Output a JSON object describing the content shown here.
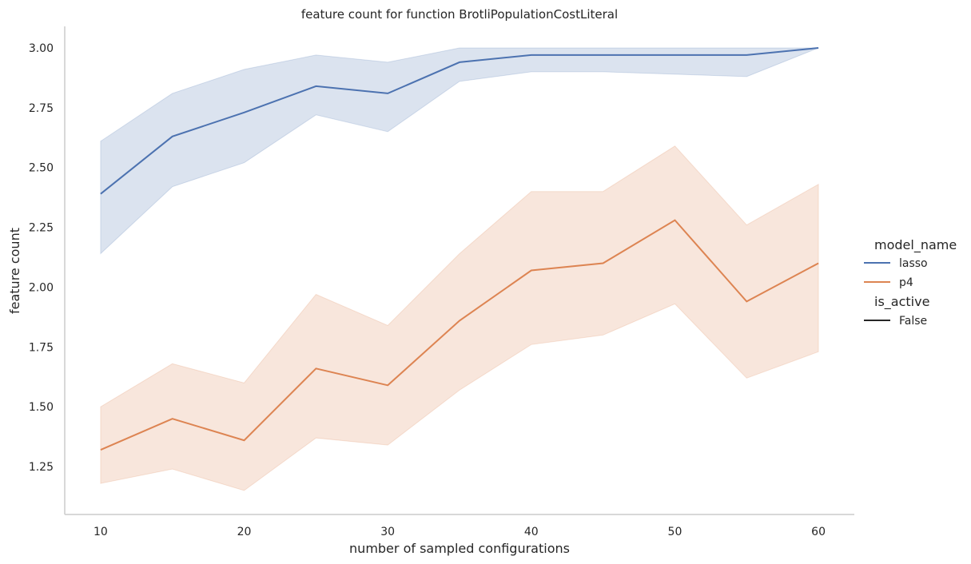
{
  "chart_data": {
    "type": "line",
    "title": "feature count for function BrotliPopulationCostLiteral",
    "xlabel": "number of sampled configurations",
    "ylabel": "feature count",
    "x": [
      10,
      15,
      20,
      25,
      30,
      35,
      40,
      45,
      50,
      55,
      60
    ],
    "xticks": [
      "10",
      "20",
      "30",
      "40",
      "50",
      "60"
    ],
    "yticks": [
      "1.25",
      "1.50",
      "1.75",
      "2.00",
      "2.25",
      "2.50",
      "2.75",
      "3.00"
    ],
    "xlim": [
      7.5,
      62.5
    ],
    "ylim": [
      1.05,
      3.09
    ],
    "grid": false,
    "legend_placement": "right",
    "series": [
      {
        "name": "lasso",
        "color": "#4c72b0",
        "values": [
          2.39,
          2.63,
          2.73,
          2.84,
          2.81,
          2.94,
          2.97,
          2.97,
          2.97,
          2.97,
          3.0
        ],
        "ci_low": [
          2.14,
          2.42,
          2.52,
          2.72,
          2.65,
          2.86,
          2.9,
          2.9,
          2.89,
          2.88,
          3.0
        ],
        "ci_high": [
          2.61,
          2.81,
          2.91,
          2.97,
          2.94,
          3.0,
          3.0,
          3.0,
          3.0,
          3.0,
          3.0
        ]
      },
      {
        "name": "p4",
        "color": "#dd8452",
        "values": [
          1.32,
          1.45,
          1.36,
          1.66,
          1.59,
          1.86,
          2.07,
          2.1,
          2.28,
          1.94,
          2.1
        ],
        "ci_low": [
          1.18,
          1.24,
          1.15,
          1.37,
          1.34,
          1.57,
          1.76,
          1.8,
          1.93,
          1.62,
          1.73
        ],
        "ci_high": [
          1.5,
          1.68,
          1.6,
          1.97,
          1.84,
          2.14,
          2.4,
          2.4,
          2.59,
          2.26,
          2.43
        ]
      }
    ],
    "legend": {
      "hue_title": "model_name",
      "style_title": "is_active",
      "style_entries": [
        {
          "name": "False",
          "color": "#262626"
        }
      ]
    }
  }
}
